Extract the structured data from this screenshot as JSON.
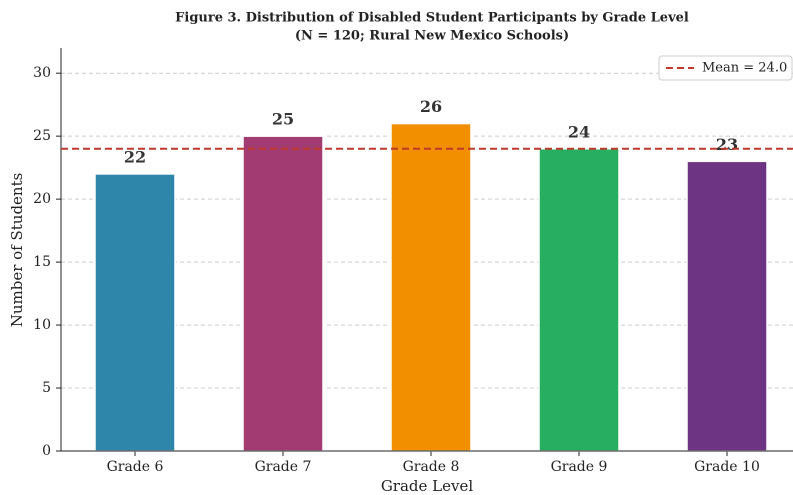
{
  "chart_data": {
    "type": "bar",
    "title": "Figure 3. Distribution of Disabled Student Participants by Grade Level",
    "subtitle": "(N = 120; Rural New Mexico Schools)",
    "x_label": "Grade Level",
    "y_label": "Number of Students",
    "categories": [
      "Grade 6",
      "Grade 7",
      "Grade 8",
      "Grade 9",
      "Grade 10"
    ],
    "values": [
      22,
      25,
      26,
      24,
      23
    ],
    "colors": [
      "#2e86ab",
      "#a23b72",
      "#f18f01",
      "#27ae60",
      "#6c3483"
    ],
    "ylim": [
      0,
      32
    ],
    "yticks": [
      0,
      5,
      10,
      15,
      20,
      25,
      30
    ],
    "grid": true,
    "mean_line": {
      "value": 24,
      "label": "Mean = 24.0",
      "color": "#c0392b"
    },
    "legend": "upper right"
  }
}
